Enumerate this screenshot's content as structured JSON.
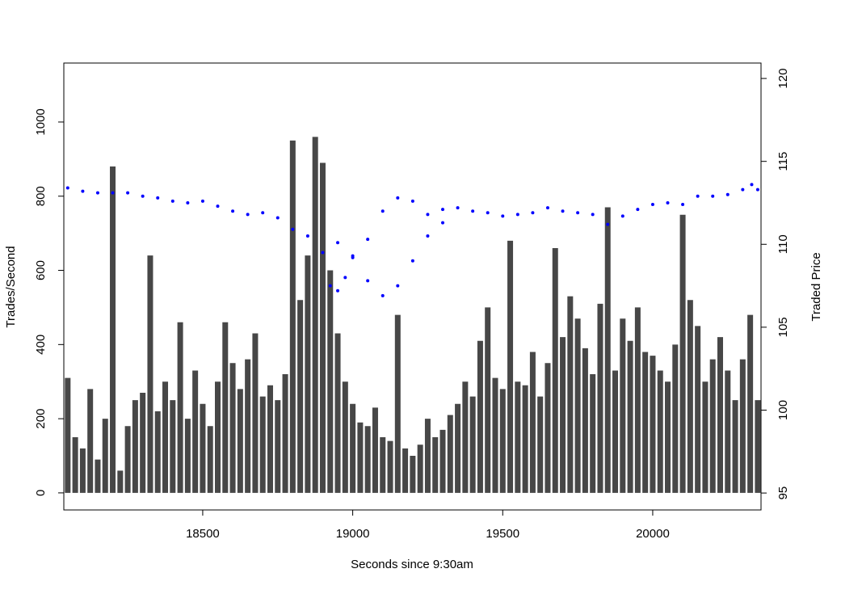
{
  "chart_data": {
    "type": "bar",
    "x_label": "Seconds since 9:30am",
    "y_label": "Trades/Second",
    "y2_label": "Traded Price",
    "x": [
      18050,
      18075,
      18100,
      18125,
      18150,
      18175,
      18200,
      18225,
      18250,
      18275,
      18300,
      18325,
      18350,
      18375,
      18400,
      18425,
      18450,
      18475,
      18500,
      18525,
      18550,
      18575,
      18600,
      18625,
      18650,
      18675,
      18700,
      18725,
      18750,
      18775,
      18800,
      18825,
      18850,
      18875,
      18900,
      18925,
      18950,
      18975,
      19000,
      19025,
      19050,
      19075,
      19100,
      19125,
      19150,
      19175,
      19200,
      19225,
      19250,
      19275,
      19300,
      19325,
      19350,
      19375,
      19400,
      19425,
      19450,
      19475,
      19500,
      19525,
      19550,
      19575,
      19600,
      19625,
      19650,
      19675,
      19700,
      19725,
      19750,
      19775,
      19800,
      19825,
      19850,
      19875,
      19900,
      19925,
      19950,
      19975,
      20000,
      20025,
      20050,
      20075,
      20100,
      20125,
      20150,
      20175,
      20200,
      20225,
      20250,
      20275,
      20300,
      20325,
      20350
    ],
    "values": [
      310,
      150,
      120,
      280,
      90,
      200,
      880,
      60,
      180,
      250,
      270,
      640,
      220,
      300,
      250,
      460,
      200,
      330,
      240,
      180,
      300,
      460,
      350,
      280,
      360,
      430,
      260,
      290,
      250,
      320,
      950,
      520,
      640,
      960,
      890,
      600,
      430,
      300,
      240,
      190,
      180,
      230,
      150,
      140,
      480,
      120,
      100,
      130,
      200,
      150,
      170,
      210,
      240,
      300,
      260,
      410,
      500,
      310,
      280,
      680,
      300,
      290,
      380,
      260,
      350,
      660,
      420,
      530,
      470,
      390,
      320,
      510,
      770,
      330,
      470,
      410,
      500,
      380,
      370,
      330,
      300,
      400,
      750,
      520,
      450,
      300,
      360,
      420,
      330,
      250,
      360,
      480,
      250
    ],
    "color": "#474747",
    "series": [
      {
        "type": "scatter",
        "axis": "y2",
        "color": "#0000ff",
        "x": [
          18050,
          18100,
          18150,
          18200,
          18250,
          18300,
          18350,
          18400,
          18450,
          18500,
          18550,
          18600,
          18650,
          18700,
          18750,
          18800,
          18850,
          18900,
          18925,
          18950,
          18975,
          19000,
          19050,
          19100,
          19150,
          19200,
          19250,
          19300,
          19350,
          19400,
          19450,
          19500,
          19550,
          19600,
          19650,
          19700,
          19750,
          19800,
          19850,
          19900,
          19950,
          20000,
          20050,
          20100,
          20150,
          20200,
          20250,
          20300,
          20330,
          20350,
          18950,
          19000,
          19050,
          19100,
          19150,
          19200,
          19250,
          19300
        ],
        "values": [
          113.4,
          113.2,
          113.1,
          113.1,
          113.1,
          112.9,
          112.8,
          112.6,
          112.5,
          112.6,
          112.3,
          112.0,
          111.8,
          111.9,
          111.6,
          110.9,
          110.5,
          109.5,
          107.5,
          107.2,
          108.0,
          109.3,
          110.3,
          112.0,
          112.8,
          112.6,
          111.8,
          112.1,
          112.2,
          112.0,
          111.9,
          111.7,
          111.8,
          111.9,
          112.2,
          112.0,
          111.9,
          111.8,
          111.2,
          111.7,
          112.1,
          112.4,
          112.5,
          112.4,
          112.9,
          112.9,
          113.0,
          113.3,
          113.6,
          113.3,
          110.1,
          109.2,
          107.8,
          106.9,
          107.5,
          109.0,
          110.5,
          111.3
        ]
      }
    ],
    "xlim": [
      18037,
      20361
    ],
    "xticks": [
      18500,
      19000,
      19500,
      20000
    ],
    "ylim": [
      -46,
      1159
    ],
    "yticks": [
      0,
      200,
      400,
      600,
      800,
      1000
    ],
    "y2lim": [
      93.98,
      120.93
    ],
    "y2ticks": [
      95,
      100,
      105,
      110,
      115,
      120
    ]
  }
}
